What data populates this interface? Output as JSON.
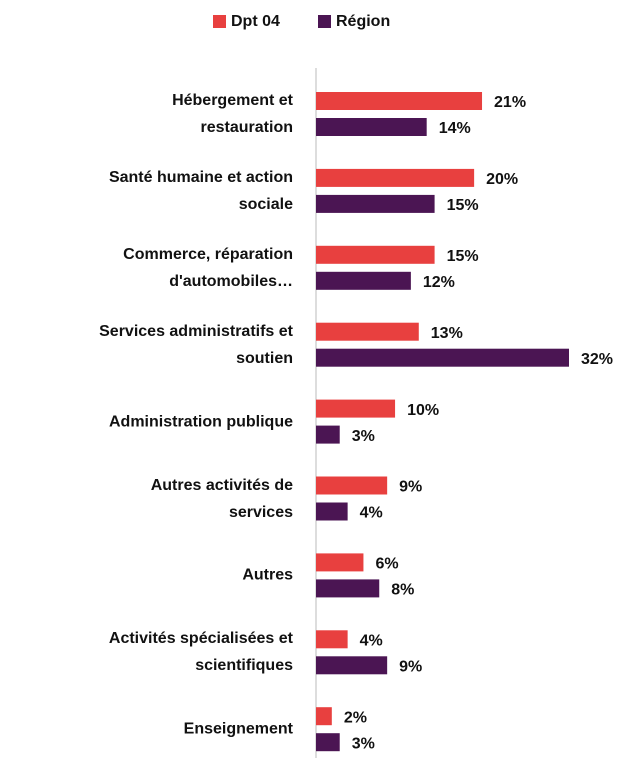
{
  "chart_data": {
    "type": "hbar",
    "categories": [
      "Hébergement et\nrestauration",
      "Santé humaine et action\nsociale",
      "Commerce, réparation\nd'automobiles…",
      "Services administratifs et\nsoutien",
      "Administration publique",
      "Autres activités de\nservices",
      "Autres",
      "Activités spécialisées et\nscientifiques",
      "Enseignement"
    ],
    "series": [
      {
        "name": "Dpt 04",
        "color": "#e8403f",
        "values": [
          21,
          20,
          15,
          13,
          10,
          9,
          6,
          4,
          2
        ],
        "value_labels": [
          "21%",
          "20%",
          "15%",
          "13%",
          "10%",
          "9%",
          "6%",
          "4%",
          "2%"
        ]
      },
      {
        "name": "Région",
        "color": "#4b1553",
        "values": [
          14,
          15,
          12,
          32,
          3,
          4,
          8,
          9,
          3
        ],
        "value_labels": [
          "14%",
          "15%",
          "12%",
          "32%",
          "3%",
          "4%",
          "8%",
          "9%",
          "3%"
        ]
      }
    ],
    "xlim": [
      0,
      32
    ],
    "legend": "top"
  }
}
